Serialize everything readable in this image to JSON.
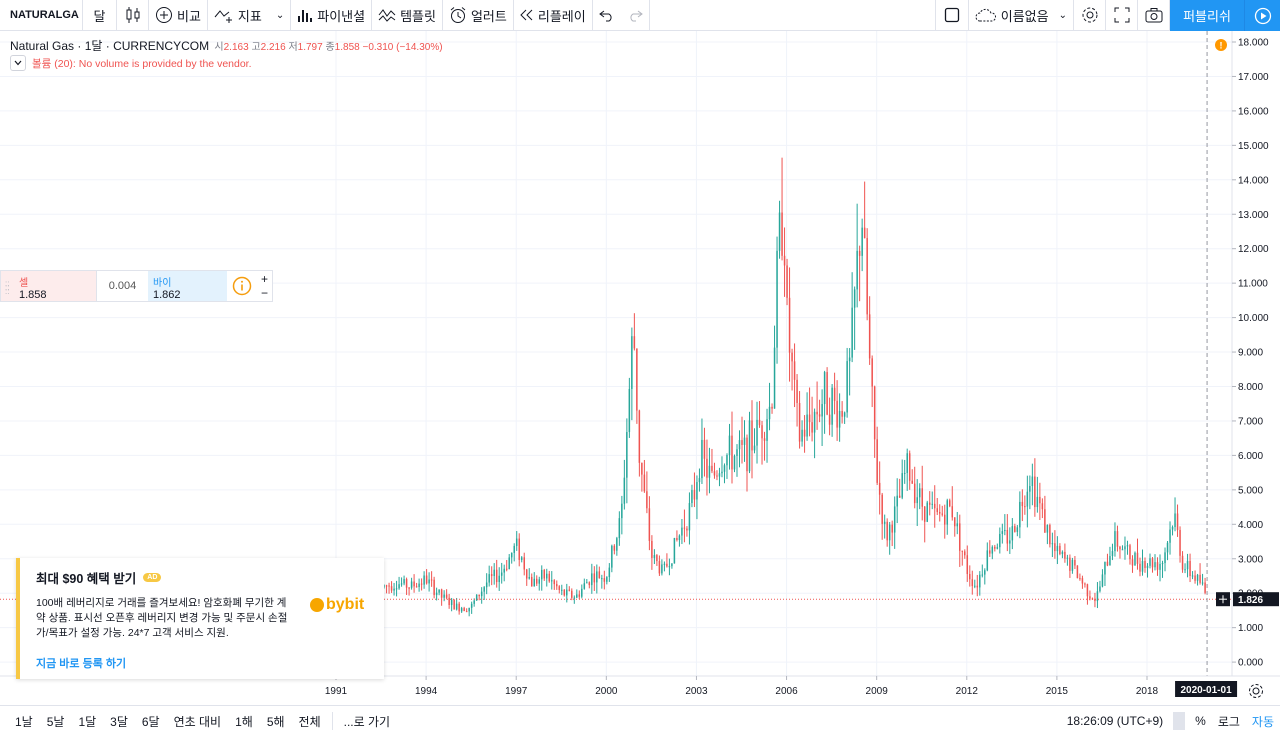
{
  "toolbar": {
    "symbol": "NATURALGA",
    "interval": "달",
    "compare": "비교",
    "indicators": "지표",
    "financials": "파이낸셜",
    "templates": "템플릿",
    "alert": "얼러트",
    "replay": "리플레이",
    "layout_name": "이름없음",
    "publish": "퍼블리쉬"
  },
  "legend": {
    "title": "Natural Gas · 1달 · CURRENCYCOM",
    "open_label": "시",
    "open": "2.163",
    "high_label": "고",
    "high": "2.216",
    "low_label": "저",
    "low": "1.797",
    "close_label": "종",
    "close": "1.858",
    "change": "−0.310 (−14.30%)",
    "volume_note": "볼륨 (20): No volume is provided by the vendor."
  },
  "trade": {
    "sell_label": "셀",
    "sell_price": "1.858",
    "spread": "0.004",
    "buy_label": "바이",
    "buy_price": "1.862"
  },
  "ad": {
    "title": "최대 $90 혜택 받기",
    "badge": "AD",
    "body": "100배 레버리지로 거래를 즐겨보세요! 암호화폐 무기한 계약 상품. 표시선 오픈후 레버리지 변경 가능 및 주문시 손절가/목표가 설정 가능. 24*7 고객 서비스 지원.",
    "cta": "지금 바로 등록 하기",
    "logo_text": "bybit"
  },
  "bottombar": {
    "ranges": [
      "1날",
      "5날",
      "1달",
      "3달",
      "6달",
      "연초 대비",
      "1해",
      "5해",
      "전체"
    ],
    "goto": "...로 가기",
    "clock": "18:26:09 (UTC+9)",
    "percent": "%",
    "log": "로그",
    "auto": "자동"
  },
  "colors": {
    "up": "#26a69a",
    "down": "#ef5350",
    "accent": "#2196f3",
    "ad_accent": "#f7c844"
  },
  "chart_data": {
    "type": "candlestick",
    "symbol": "Natural Gas",
    "interval": "1M",
    "last_price": 1.826,
    "last_price_label": "1.826",
    "crosshair_date": "2020-01-01",
    "ylim": [
      -0.2,
      18.0
    ],
    "y_ticks": [
      "18.000",
      "17.000",
      "16.000",
      "15.000",
      "14.000",
      "13.000",
      "12.000",
      "11.000",
      "10.000",
      "9.000",
      "8.000",
      "7.000",
      "6.000",
      "5.000",
      "4.000",
      "3.000",
      "2.000",
      "1.000",
      "0.000"
    ],
    "x_ticks": [
      "1991",
      "1994",
      "1997",
      "2000",
      "2003",
      "2006",
      "2009",
      "2012",
      "2015",
      "2018"
    ],
    "x_range": [
      1989.9,
      2020.1
    ],
    "data_start": 1992.6,
    "key_closes": [
      [
        1992.6,
        2.2
      ],
      [
        1993.0,
        2.3
      ],
      [
        1993.5,
        2.2
      ],
      [
        1994.0,
        2.4
      ],
      [
        1994.5,
        1.9
      ],
      [
        1995.0,
        1.6
      ],
      [
        1995.5,
        1.6
      ],
      [
        1996.0,
        2.3
      ],
      [
        1996.5,
        2.6
      ],
      [
        1997.0,
        3.4
      ],
      [
        1997.5,
        2.3
      ],
      [
        1998.0,
        2.5
      ],
      [
        1998.5,
        2.0
      ],
      [
        1999.0,
        1.9
      ],
      [
        1999.5,
        2.5
      ],
      [
        2000.0,
        2.5
      ],
      [
        2000.5,
        4.2
      ],
      [
        2000.9,
        9.8
      ],
      [
        2001.1,
        6.0
      ],
      [
        2001.5,
        3.1
      ],
      [
        2001.9,
        2.6
      ],
      [
        2002.3,
        3.4
      ],
      [
        2002.9,
        4.7
      ],
      [
        2003.1,
        6.0
      ],
      [
        2003.5,
        5.3
      ],
      [
        2003.9,
        6.0
      ],
      [
        2004.5,
        6.0
      ],
      [
        2004.9,
        6.5
      ],
      [
        2005.5,
        7.5
      ],
      [
        2005.7,
        11.5
      ],
      [
        2005.9,
        13.5
      ],
      [
        2006.0,
        10.0
      ],
      [
        2006.4,
        6.5
      ],
      [
        2006.8,
        7.0
      ],
      [
        2007.3,
        7.8
      ],
      [
        2007.8,
        7.2
      ],
      [
        2008.1,
        8.5
      ],
      [
        2008.5,
        13.2
      ],
      [
        2008.8,
        8.0
      ],
      [
        2009.0,
        5.5
      ],
      [
        2009.3,
        3.6
      ],
      [
        2009.7,
        4.5
      ],
      [
        2010.0,
        5.7
      ],
      [
        2010.5,
        4.6
      ],
      [
        2011.0,
        4.2
      ],
      [
        2011.5,
        4.5
      ],
      [
        2012.0,
        2.7
      ],
      [
        2012.3,
        2.2
      ],
      [
        2012.8,
        3.4
      ],
      [
        2013.5,
        3.7
      ],
      [
        2014.1,
        5.5
      ],
      [
        2014.5,
        4.3
      ],
      [
        2014.9,
        3.2
      ],
      [
        2015.5,
        2.8
      ],
      [
        2016.0,
        2.1
      ],
      [
        2016.3,
        1.8
      ],
      [
        2016.9,
        3.6
      ],
      [
        2017.5,
        3.0
      ],
      [
        2018.0,
        2.9
      ],
      [
        2018.5,
        2.9
      ],
      [
        2018.9,
        4.3
      ],
      [
        2019.2,
        2.8
      ],
      [
        2019.8,
        2.3
      ],
      [
        2020.0,
        1.85
      ]
    ]
  }
}
